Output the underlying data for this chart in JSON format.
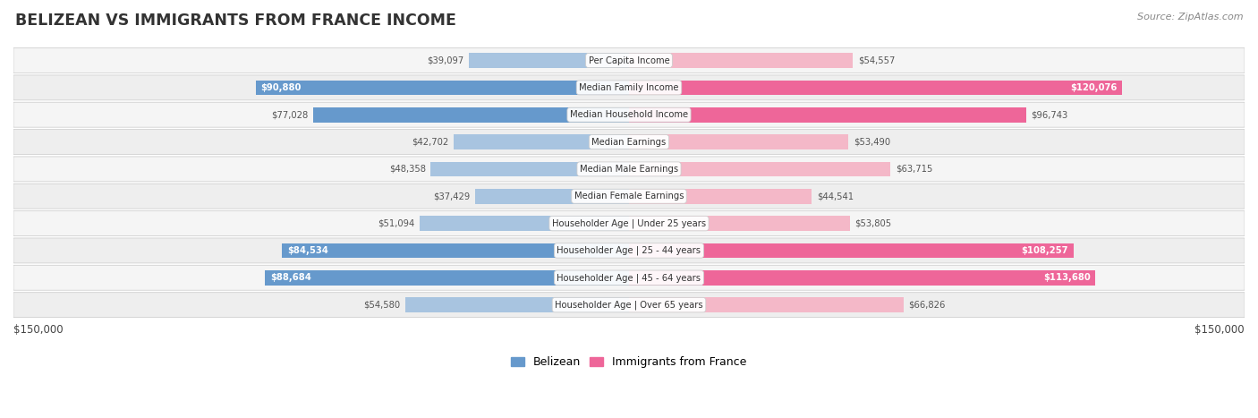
{
  "title": "BELIZEAN VS IMMIGRANTS FROM FRANCE INCOME",
  "source": "Source: ZipAtlas.com",
  "categories": [
    "Per Capita Income",
    "Median Family Income",
    "Median Household Income",
    "Median Earnings",
    "Median Male Earnings",
    "Median Female Earnings",
    "Householder Age | Under 25 years",
    "Householder Age | 25 - 44 years",
    "Householder Age | 45 - 64 years",
    "Householder Age | Over 65 years"
  ],
  "belizean_values": [
    39097,
    90880,
    77028,
    42702,
    48358,
    37429,
    51094,
    84534,
    88684,
    54580
  ],
  "france_values": [
    54557,
    120076,
    96743,
    53490,
    63715,
    44541,
    53805,
    108257,
    113680,
    66826
  ],
  "belizean_labels": [
    "$39,097",
    "$90,880",
    "$77,028",
    "$42,702",
    "$48,358",
    "$37,429",
    "$51,094",
    "$84,534",
    "$88,684",
    "$54,580"
  ],
  "france_labels": [
    "$54,557",
    "$120,076",
    "$96,743",
    "$53,490",
    "$63,715",
    "$44,541",
    "$53,805",
    "$108,257",
    "$113,680",
    "$66,826"
  ],
  "max_value": 150000,
  "belizean_color_normal": "#a8c4e0",
  "belizean_color_highlight": "#6699cc",
  "france_color_normal": "#f4b8c8",
  "france_color_highlight": "#ee6699",
  "label_color_dark": "#555555",
  "label_color_white": "#ffffff",
  "highlight_rows": [
    1,
    2,
    7,
    8
  ],
  "france_inside_rows": [
    1,
    7,
    8
  ],
  "belizean_inside_rows": [
    1,
    7,
    8
  ],
  "legend_belizean": "Belizean",
  "legend_france": "Immigrants from France",
  "xlabel_left": "$150,000",
  "xlabel_right": "$150,000",
  "title_color": "#333333",
  "source_color": "#888888"
}
